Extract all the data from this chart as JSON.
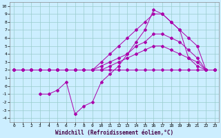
{
  "title": "",
  "xlabel": "Windchill (Refroidissement éolien,°C)",
  "bg_color": "#cceeff",
  "line_color": "#aa00aa",
  "grid_color": "#99cccc",
  "xlim": [
    -0.5,
    23.5
  ],
  "ylim": [
    -4.5,
    10.5
  ],
  "xticks": [
    0,
    1,
    2,
    3,
    4,
    5,
    6,
    7,
    8,
    9,
    10,
    11,
    12,
    13,
    14,
    15,
    16,
    17,
    18,
    19,
    20,
    21,
    22,
    23
  ],
  "yticks": [
    10,
    9,
    8,
    7,
    6,
    5,
    4,
    3,
    2,
    1,
    0,
    -1,
    -2,
    -3,
    -4
  ],
  "line_upper_x": [
    0,
    1,
    2,
    3,
    4,
    5,
    6,
    7,
    8,
    9,
    10,
    11,
    12,
    13,
    14,
    15,
    16,
    17,
    18,
    19,
    20,
    21,
    22,
    23
  ],
  "line_upper_y": [
    2,
    2,
    2,
    2,
    2,
    2,
    2,
    2,
    2,
    2,
    3,
    4,
    5,
    6,
    7,
    8,
    9,
    9,
    8,
    7,
    6,
    5,
    2,
    2
  ],
  "line_mid_x": [
    0,
    1,
    2,
    3,
    4,
    5,
    6,
    7,
    8,
    9,
    10,
    11,
    12,
    13,
    14,
    15,
    16,
    17,
    18,
    19,
    20,
    21,
    22,
    23
  ],
  "line_mid_y": [
    2,
    2,
    2,
    2,
    2,
    2,
    2,
    2,
    2,
    2,
    2.5,
    3,
    3.5,
    4,
    5,
    5.5,
    6.5,
    6.5,
    6,
    5.5,
    4.5,
    3.5,
    2,
    2
  ],
  "line_lower_x": [
    0,
    1,
    2,
    3,
    4,
    5,
    6,
    7,
    8,
    9,
    10,
    11,
    12,
    13,
    14,
    15,
    16,
    17,
    18,
    19,
    20,
    21,
    22,
    23
  ],
  "line_lower_y": [
    2,
    2,
    2,
    2,
    2,
    2,
    2,
    2,
    2,
    2,
    2,
    2.5,
    3,
    3.5,
    4,
    4.5,
    5,
    5,
    4.5,
    4,
    3.5,
    3,
    2,
    2
  ],
  "line_flat_x": [
    0,
    1,
    2,
    3,
    4,
    5,
    6,
    7,
    8,
    9,
    10,
    11,
    12,
    13,
    14,
    15,
    16,
    17,
    18,
    19,
    20,
    21,
    22,
    23
  ],
  "line_flat_y": [
    2,
    2,
    2,
    2,
    2,
    2,
    2,
    2,
    2,
    2,
    2,
    2,
    2,
    2,
    2,
    2,
    2,
    2,
    2,
    2,
    2,
    2,
    2,
    2
  ],
  "line_spike_x": [
    3,
    4,
    5,
    6,
    7,
    8,
    9,
    10,
    11,
    12,
    13,
    14,
    15,
    16,
    17,
    18,
    19,
    20,
    21,
    22,
    23
  ],
  "line_spike_y": [
    -1,
    -1,
    -0.5,
    0.5,
    -3.5,
    -2.5,
    -2,
    0.5,
    1.5,
    2.5,
    4,
    5.5,
    7,
    9.5,
    9,
    8,
    7,
    3.5,
    2.5,
    2,
    2
  ]
}
